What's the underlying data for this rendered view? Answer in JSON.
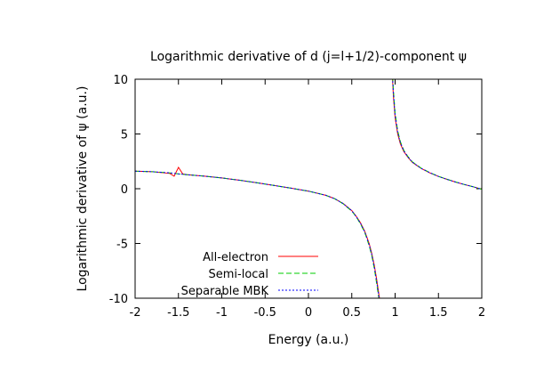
{
  "chart_data": {
    "type": "line",
    "title": "Logarithmic derivative of d (j=l+1/2)-component ψ",
    "xlabel": "Energy (a.u.)",
    "ylabel": "Logarithmic derivative of ψ (a.u.)",
    "xlim": [
      -2,
      2
    ],
    "ylim": [
      -10,
      10
    ],
    "x_ticks": [
      -2,
      -1.5,
      -1,
      -0.5,
      0,
      0.5,
      1,
      1.5,
      2
    ],
    "x_tick_labels": [
      "-2",
      "-1.5",
      "-1",
      "-0.5",
      "0",
      "0.5",
      "1",
      "1.5",
      "2"
    ],
    "y_ticks": [
      -10,
      -5,
      0,
      5,
      10
    ],
    "y_tick_labels": [
      "-10",
      "-5",
      "0",
      "5",
      "10"
    ],
    "grid": false,
    "legend_position": "bottom-left",
    "pole_energy": 0.9,
    "series": [
      {
        "name": "All-electron",
        "color": "#ff0000",
        "dash": "solid",
        "x": [
          -2.0,
          -1.8,
          -1.6,
          -1.55,
          -1.5,
          -1.45,
          -1.4,
          -1.2,
          -1.0,
          -0.8,
          -0.6,
          -0.4,
          -0.2,
          0.0,
          0.2,
          0.3,
          0.4,
          0.5,
          0.55,
          0.6,
          0.65,
          0.7,
          0.73,
          0.76,
          0.79,
          0.81,
          0.82,
          0.83,
          0.96,
          0.97,
          0.98,
          1.0,
          1.03,
          1.06,
          1.1,
          1.15,
          1.2,
          1.3,
          1.4,
          1.5,
          1.6,
          1.7,
          1.8,
          1.9,
          2.0
        ],
        "y": [
          1.6,
          1.55,
          1.4,
          1.15,
          1.95,
          1.35,
          1.28,
          1.15,
          0.98,
          0.78,
          0.55,
          0.3,
          0.05,
          -0.22,
          -0.6,
          -0.9,
          -1.35,
          -2.0,
          -2.5,
          -3.1,
          -3.9,
          -5.0,
          -5.9,
          -7.0,
          -8.4,
          -9.5,
          -10.0,
          -10.5,
          10.5,
          10.0,
          8.4,
          6.5,
          5.0,
          4.1,
          3.4,
          2.85,
          2.4,
          1.85,
          1.45,
          1.12,
          0.85,
          0.6,
          0.38,
          0.18,
          -0.05
        ]
      },
      {
        "name": "Semi-local",
        "color": "#00cc00",
        "dash": "6,3",
        "x": [
          -2.0,
          -1.8,
          -1.6,
          -1.55,
          -1.5,
          -1.45,
          -1.4,
          -1.2,
          -1.0,
          -0.8,
          -0.6,
          -0.4,
          -0.2,
          0.0,
          0.2,
          0.3,
          0.4,
          0.5,
          0.55,
          0.6,
          0.65,
          0.7,
          0.73,
          0.76,
          0.79,
          0.81,
          0.82,
          0.83,
          0.96,
          0.97,
          0.98,
          1.0,
          1.03,
          1.06,
          1.1,
          1.15,
          1.2,
          1.3,
          1.4,
          1.5,
          1.6,
          1.7,
          1.8,
          1.9,
          2.0
        ],
        "y": [
          1.6,
          1.55,
          1.45,
          1.4,
          1.35,
          1.32,
          1.28,
          1.15,
          0.98,
          0.78,
          0.55,
          0.3,
          0.05,
          -0.22,
          -0.6,
          -0.9,
          -1.37,
          -2.05,
          -2.55,
          -3.2,
          -4.0,
          -5.2,
          -6.1,
          -7.3,
          -8.8,
          -9.9,
          -10.5,
          -11.0,
          11.0,
          10.5,
          9.0,
          6.9,
          5.3,
          4.3,
          3.5,
          2.92,
          2.45,
          1.88,
          1.47,
          1.13,
          0.86,
          0.61,
          0.38,
          0.18,
          -0.05
        ]
      },
      {
        "name": "Separable MBK",
        "color": "#0000ff",
        "dash": "2,2",
        "x": [
          -2.0,
          -1.8,
          -1.6,
          -1.55,
          -1.5,
          -1.45,
          -1.4,
          -1.2,
          -1.0,
          -0.8,
          -0.6,
          -0.4,
          -0.2,
          0.0,
          0.2,
          0.3,
          0.4,
          0.5,
          0.55,
          0.6,
          0.65,
          0.7,
          0.73,
          0.76,
          0.79,
          0.81,
          0.82,
          0.83,
          0.96,
          0.97,
          0.98,
          1.0,
          1.03,
          1.06,
          1.1,
          1.15,
          1.2,
          1.3,
          1.4,
          1.5,
          1.6,
          1.7,
          1.8,
          1.9,
          2.0
        ],
        "y": [
          1.6,
          1.55,
          1.45,
          1.4,
          1.35,
          1.32,
          1.28,
          1.15,
          0.98,
          0.78,
          0.55,
          0.3,
          0.05,
          -0.22,
          -0.6,
          -0.9,
          -1.36,
          -2.02,
          -2.52,
          -3.15,
          -3.95,
          -5.1,
          -6.0,
          -7.15,
          -8.6,
          -9.7,
          -10.3,
          -10.8,
          10.8,
          10.2,
          8.7,
          6.7,
          5.15,
          4.2,
          3.45,
          2.88,
          2.42,
          1.86,
          1.46,
          1.12,
          0.85,
          0.6,
          0.38,
          0.18,
          -0.05
        ]
      }
    ]
  }
}
